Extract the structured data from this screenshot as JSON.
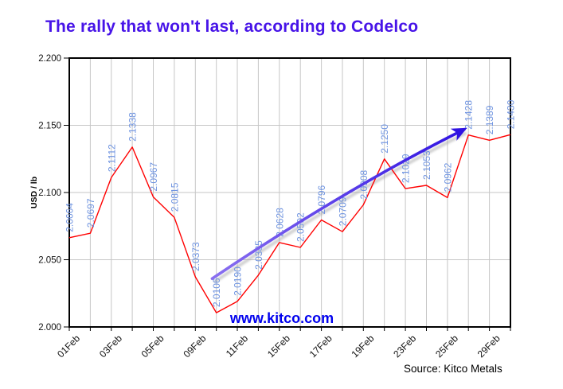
{
  "header": {
    "title": "The rally that won't last, according to Codelco",
    "title_color": "#4714e8"
  },
  "footer": {
    "source": "Source: Kitco Metals"
  },
  "watermark": {
    "text": "www.kitco.com",
    "color": "#0000ee"
  },
  "chart_data": {
    "type": "line",
    "title": "The rally that won't last, according to Codelco",
    "xlabel": "",
    "ylabel": "USD / lb",
    "ylim": [
      2.0,
      2.2
    ],
    "yticks": [
      "2.000",
      "2.050",
      "2.100",
      "2.150",
      "2.200"
    ],
    "grid": true,
    "grid_color": "#c6c6c6",
    "x": [
      "01Feb",
      "02Feb",
      "03Feb",
      "04Feb",
      "05Feb",
      "08Feb",
      "09Feb",
      "10Feb",
      "11Feb",
      "12Feb",
      "15Feb",
      "16Feb",
      "17Feb",
      "18Feb",
      "19Feb",
      "22Feb",
      "23Feb",
      "24Feb",
      "25Feb",
      "26Feb",
      "29Feb",
      "01Mar"
    ],
    "xtick_every": 2,
    "xtick_labels_shown": [
      "01Feb",
      "03Feb",
      "05Feb",
      "09Feb",
      "11Feb",
      "15Feb",
      "17Feb",
      "19Feb",
      "23Feb",
      "25Feb",
      "29Feb"
    ],
    "series": [
      {
        "name": "Copper spot price",
        "color": "#ff0000",
        "values": [
          2.0664,
          2.0697,
          2.1112,
          2.1338,
          2.0967,
          2.0815,
          2.0373,
          2.0106,
          2.019,
          2.0385,
          2.0628,
          2.0592,
          2.0796,
          2.0709,
          2.0908,
          2.125,
          2.1029,
          2.1053,
          2.0962,
          2.1428,
          2.1389,
          2.143
        ]
      }
    ],
    "point_labels": [
      "2.0664",
      "2.0697",
      "2.1112",
      "2.1338",
      "2.0967",
      "2.0815",
      "2.0373",
      "2.0106",
      "2.0190",
      "2.0385",
      "2.0628",
      "2.0592",
      "2.0796",
      "2.0709",
      "2.0908",
      "2.1250",
      "2.1029",
      "2.1053",
      "2.0962",
      "2.1428",
      "2.1389",
      "2.1430"
    ],
    "label_color": "#6e93e0",
    "annotation_arrow": {
      "description": "rally trend arrow from mid-February low to late-February high",
      "start": {
        "i": 6.8,
        "value": 2.036
      },
      "control": {
        "i": 13.3,
        "value": 2.104
      },
      "end": {
        "i": 18.8,
        "value": 2.147
      },
      "color_start": "#8a70f0",
      "color_end": "#2f12e2",
      "shadow_color": "#9a9a9a"
    }
  }
}
